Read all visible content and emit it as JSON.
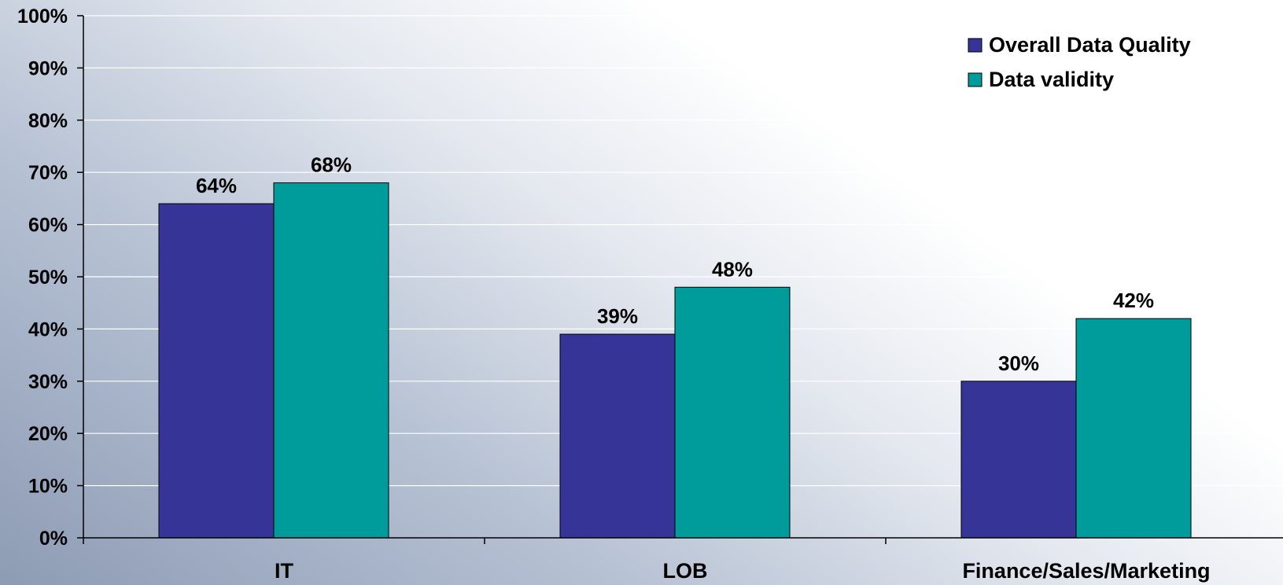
{
  "chart_data": {
    "type": "bar",
    "categories": [
      "IT",
      "LOB",
      "Finance/Sales/Marketing"
    ],
    "series": [
      {
        "name": "Overall Data Quality",
        "values": [
          64,
          39,
          30
        ],
        "labels": [
          "64%",
          "39%",
          "30%"
        ],
        "color": "#363497"
      },
      {
        "name": "Data validity",
        "values": [
          68,
          48,
          42
        ],
        "labels": [
          "68%",
          "48%",
          "42%"
        ],
        "color": "#009b9b"
      }
    ],
    "ylim": [
      0,
      100
    ],
    "yticks": [
      0,
      10,
      20,
      30,
      40,
      50,
      60,
      70,
      80,
      90,
      100
    ],
    "ytick_labels": [
      "0%",
      "10%",
      "20%",
      "30%",
      "40%",
      "50%",
      "60%",
      "70%",
      "80%",
      "90%",
      "100%"
    ],
    "grid": true,
    "legend": "top-right",
    "title": "",
    "xlabel": "",
    "ylabel": ""
  }
}
